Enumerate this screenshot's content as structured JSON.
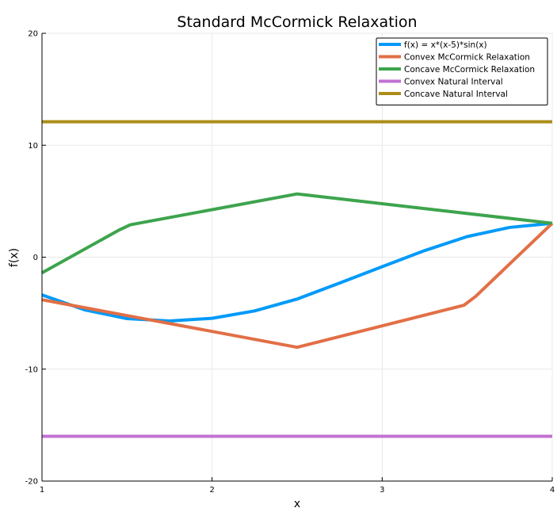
{
  "chart_data": {
    "type": "line",
    "title": "Standard McCormick Relaxation",
    "xlabel": "x",
    "ylabel": "f(x)",
    "xlim": [
      1,
      4
    ],
    "ylim": [
      -20,
      20
    ],
    "x_ticks": [
      1,
      2,
      3,
      4
    ],
    "x_tick_labels": [
      "1",
      "2",
      "3",
      "4"
    ],
    "y_ticks": [
      -20,
      -10,
      0,
      10,
      20
    ],
    "y_tick_labels": [
      "-20",
      "-10",
      "0",
      "10",
      "20"
    ],
    "grid": true,
    "legend_position": "top-right",
    "series": [
      {
        "name": "f(x) = x*(x-5)*sin(x)",
        "color": "#009af9",
        "x": [
          1.0,
          1.25,
          1.5,
          1.75,
          2.0,
          2.25,
          2.5,
          2.75,
          3.0,
          3.25,
          3.5,
          3.75,
          4.0
        ],
        "y": [
          -3.37,
          -4.7,
          -5.49,
          -5.7,
          -5.46,
          -4.8,
          -3.74,
          -2.31,
          -0.85,
          0.59,
          1.84,
          2.66,
          3.03
        ]
      },
      {
        "name": "Convex McCormick Relaxation",
        "color": "#e26f46",
        "x": [
          1.0,
          2.5,
          3.48,
          3.55,
          4.0
        ],
        "y": [
          -3.8,
          -8.05,
          -4.3,
          -3.5,
          3.03
        ]
      },
      {
        "name": "Concave McCormick Relaxation",
        "color": "#3da44d",
        "x": [
          1.0,
          1.45,
          1.52,
          2.5,
          4.0
        ],
        "y": [
          -1.4,
          2.4,
          2.9,
          5.65,
          3.03
        ]
      },
      {
        "name": "Convex Natural Interval",
        "color": "#c271d2",
        "x": [
          1.0,
          4.0
        ],
        "y": [
          -16.0,
          -16.0
        ]
      },
      {
        "name": "Concave Natural Interval",
        "color": "#ac8d18",
        "x": [
          1.0,
          4.0
        ],
        "y": [
          12.1,
          12.1
        ]
      }
    ]
  }
}
